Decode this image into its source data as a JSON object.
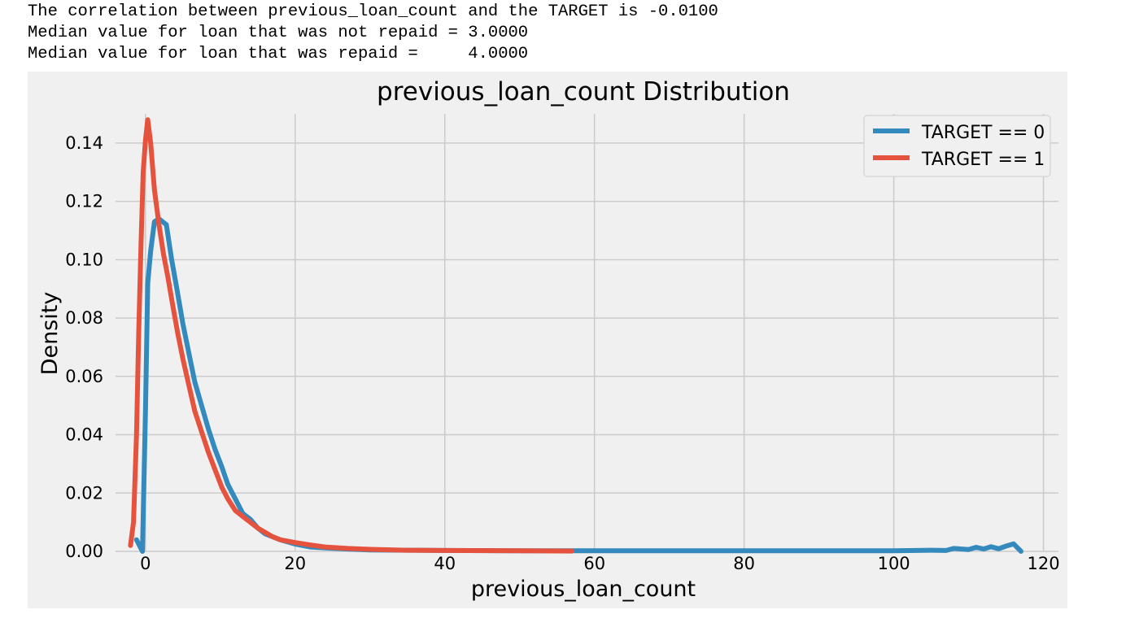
{
  "console": {
    "lines": [
      "The correlation between previous_loan_count and the TARGET is -0.0100",
      "Median value for loan that was not repaid = 3.0000",
      "Median value for loan that was repaid =     4.0000"
    ]
  },
  "chart_data": {
    "type": "line",
    "title": "previous_loan_count Distribution",
    "xlabel": "previous_loan_count",
    "ylabel": "Density",
    "xlim": [
      -4,
      122
    ],
    "ylim": [
      0,
      0.15
    ],
    "xticks": [
      0,
      20,
      40,
      60,
      80,
      100,
      120
    ],
    "xtick_labels": [
      "0",
      "20",
      "40",
      "60",
      "80",
      "100",
      "120"
    ],
    "yticks": [
      0.0,
      0.02,
      0.04,
      0.06,
      0.08,
      0.1,
      0.12,
      0.14
    ],
    "ytick_labels": [
      "0.00",
      "0.02",
      "0.04",
      "0.06",
      "0.08",
      "0.10",
      "0.12",
      "0.14"
    ],
    "grid": true,
    "legend_position": "top-right",
    "style": "fivethirtyeight",
    "colors": {
      "background": "#f0f0f0",
      "grid": "#cbcbcb",
      "axis_text": "#000000"
    },
    "series": [
      {
        "name": "TARGET == 0",
        "color": "#348ABD",
        "x": [
          -1.2,
          -0.8,
          -0.4,
          0.0,
          0.3,
          0.7,
          1.2,
          1.8,
          2.3,
          2.8,
          3.5,
          4.2,
          5.0,
          5.8,
          6.6,
          7.5,
          8.4,
          9.3,
          10.2,
          11.0,
          12.0,
          13.0,
          14.0,
          15.0,
          16.0,
          17.0,
          18.0,
          20.0,
          22.0,
          24.0,
          27.0,
          30.0,
          35.0,
          40.0,
          50.0,
          60.0,
          70.0,
          80.0,
          90.0,
          100.0,
          105.0,
          107.0,
          108.0,
          110.0,
          111.0,
          112.0,
          113.0,
          114.0,
          115.0,
          116.0,
          117.0
        ],
        "y": [
          0.004,
          0.002,
          0.0,
          0.048,
          0.092,
          0.103,
          0.113,
          0.114,
          0.113,
          0.112,
          0.1,
          0.09,
          0.078,
          0.068,
          0.058,
          0.05,
          0.042,
          0.035,
          0.029,
          0.023,
          0.018,
          0.013,
          0.011,
          0.008,
          0.006,
          0.005,
          0.004,
          0.0025,
          0.0015,
          0.0012,
          0.0008,
          0.0005,
          0.0004,
          0.0003,
          0.0002,
          0.0002,
          0.0002,
          0.0002,
          0.0002,
          0.0002,
          0.0004,
          0.0003,
          0.001,
          0.0006,
          0.0014,
          0.0008,
          0.0016,
          0.0009,
          0.0018,
          0.0026,
          0.0
        ]
      },
      {
        "name": "TARGET == 1",
        "color": "#E5533F",
        "x": [
          -2.0,
          -1.6,
          -1.2,
          -0.9,
          -0.6,
          -0.3,
          0.0,
          0.3,
          0.7,
          1.2,
          1.8,
          2.4,
          3.0,
          3.6,
          4.3,
          5.0,
          5.8,
          6.6,
          7.5,
          8.4,
          9.3,
          10.2,
          11.0,
          12.0,
          13.0,
          14.0,
          15.0,
          16.0,
          17.0,
          18.0,
          20.0,
          22.0,
          24.0,
          27.0,
          30.0,
          35.0,
          40.0,
          50.0,
          57.0
        ],
        "y": [
          0.002,
          0.01,
          0.04,
          0.075,
          0.105,
          0.13,
          0.141,
          0.148,
          0.14,
          0.124,
          0.112,
          0.102,
          0.094,
          0.085,
          0.075,
          0.066,
          0.057,
          0.048,
          0.041,
          0.034,
          0.028,
          0.022,
          0.018,
          0.014,
          0.012,
          0.01,
          0.008,
          0.0065,
          0.005,
          0.004,
          0.003,
          0.0022,
          0.0015,
          0.001,
          0.0007,
          0.0004,
          0.0003,
          0.0002,
          0.0001
        ]
      }
    ]
  }
}
